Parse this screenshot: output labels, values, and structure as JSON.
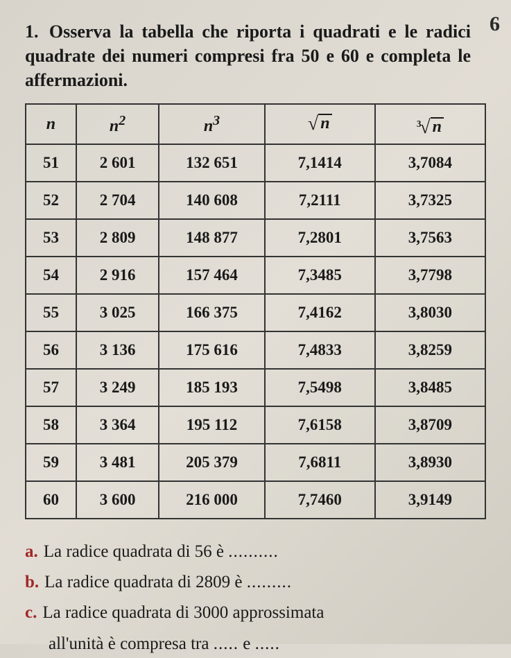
{
  "page_corner": "6",
  "question": {
    "number": "1.",
    "text": "Osserva la tabella che riporta i quadrati e le radici quadrate dei numeri compresi fra 50 e 60 e completa le affermazioni."
  },
  "table": {
    "headers": {
      "n": "n",
      "n2": "n",
      "n2_sup": "2",
      "n3": "n",
      "n3_sup": "3",
      "sqrt_arg": "n",
      "cbrt_index": "3",
      "cbrt_arg": "n"
    },
    "rows": [
      {
        "n": "51",
        "n2": "2 601",
        "n3": "132 651",
        "sqrt": "7,1414",
        "cbrt": "3,7084"
      },
      {
        "n": "52",
        "n2": "2 704",
        "n3": "140 608",
        "sqrt": "7,2111",
        "cbrt": "3,7325"
      },
      {
        "n": "53",
        "n2": "2 809",
        "n3": "148 877",
        "sqrt": "7,2801",
        "cbrt": "3,7563"
      },
      {
        "n": "54",
        "n2": "2 916",
        "n3": "157 464",
        "sqrt": "7,3485",
        "cbrt": "3,7798"
      },
      {
        "n": "55",
        "n2": "3 025",
        "n3": "166 375",
        "sqrt": "7,4162",
        "cbrt": "3,8030"
      },
      {
        "n": "56",
        "n2": "3 136",
        "n3": "175 616",
        "sqrt": "7,4833",
        "cbrt": "3,8259"
      },
      {
        "n": "57",
        "n2": "3 249",
        "n3": "185 193",
        "sqrt": "7,5498",
        "cbrt": "3,8485"
      },
      {
        "n": "58",
        "n2": "3 364",
        "n3": "195 112",
        "sqrt": "7,6158",
        "cbrt": "3,8709"
      },
      {
        "n": "59",
        "n2": "3 481",
        "n3": "205 379",
        "sqrt": "7,6811",
        "cbrt": "3,8930"
      },
      {
        "n": "60",
        "n2": "3 600",
        "n3": "216 000",
        "sqrt": "7,7460",
        "cbrt": "3,9149"
      }
    ]
  },
  "answers": {
    "a": {
      "label": "a.",
      "text": "La radice quadrata di 56 è ",
      "dots": ".........."
    },
    "b": {
      "label": "b.",
      "text": "La radice quadrata di 2809 è ",
      "dots": "........."
    },
    "c": {
      "label": "c.",
      "text_line1": "La radice quadrata di 3000 approssimata",
      "text_line2_pre": "all'unità è compresa tra ",
      "dots1": ".....",
      "mid": " e ",
      "dots2": "....."
    }
  },
  "colors": {
    "text": "#1a1a1a",
    "border": "#333333",
    "answer_label": "#a02828",
    "background_start": "#d8d4cc",
    "background_end": "#d0ccc2"
  }
}
